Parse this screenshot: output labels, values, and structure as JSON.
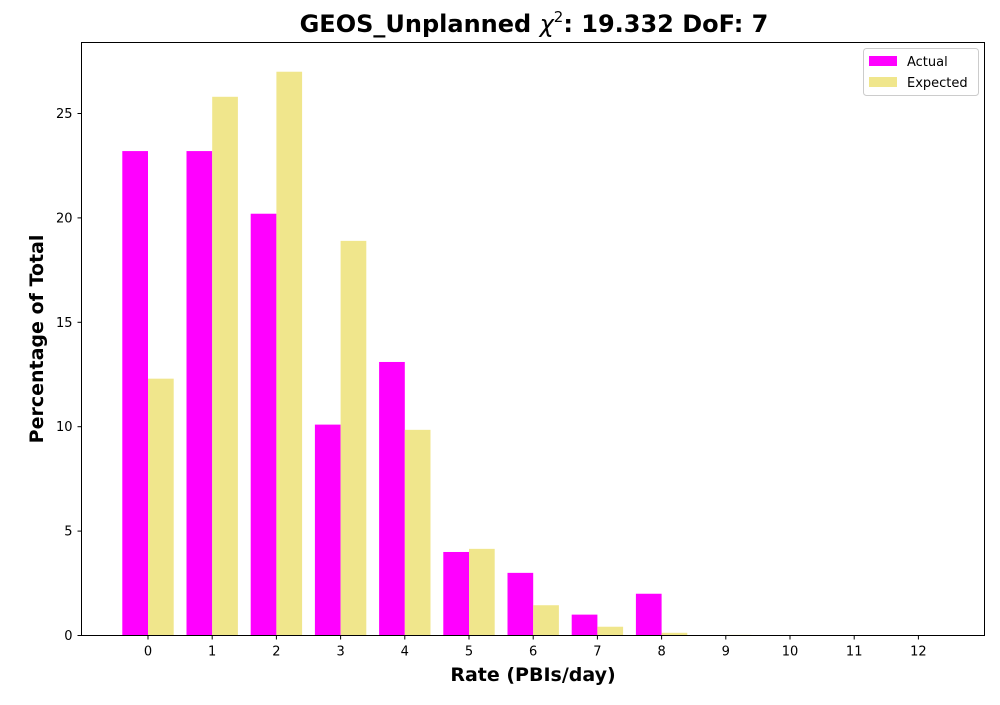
{
  "chart_data": {
    "type": "bar",
    "title_prefix": "GEOS_Unplanned ",
    "title_chi": "χ",
    "title_sup": "2",
    "title_suffix": ": 19.332 DoF: 7",
    "xlabel": "Rate (PBIs/day)",
    "ylabel": "Percentage of Total",
    "categories": [
      "0",
      "1",
      "2",
      "3",
      "4",
      "5",
      "6",
      "7",
      "8",
      "9",
      "10",
      "11",
      "12"
    ],
    "yticks": [
      0,
      5,
      10,
      15,
      20,
      25
    ],
    "ylim": [
      0,
      28.4
    ],
    "legend_position": "top-right",
    "series": [
      {
        "name": "Actual",
        "color": "#ff00ff",
        "values": [
          23.2,
          23.2,
          20.2,
          10.1,
          13.1,
          4.0,
          3.0,
          1.0,
          2.0,
          0,
          0,
          0,
          0
        ]
      },
      {
        "name": "Expected",
        "color": "#f0e68c",
        "values": [
          12.3,
          25.8,
          27.0,
          18.9,
          9.85,
          4.15,
          1.45,
          0.42,
          0.13,
          0.03,
          0.01,
          0,
          0
        ]
      }
    ]
  }
}
